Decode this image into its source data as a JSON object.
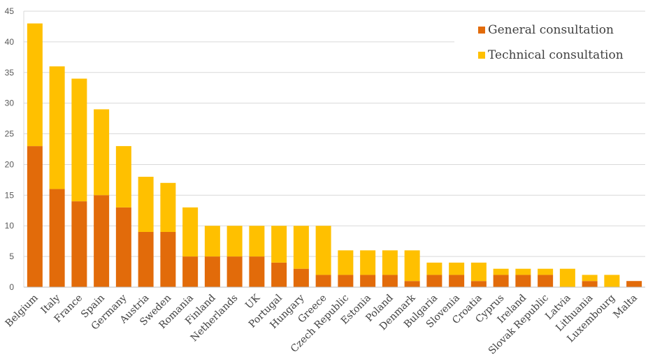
{
  "chart_data": {
    "type": "bar",
    "stacked": true,
    "categories": [
      "Belgium",
      "Italy",
      "France",
      "Spain",
      "Germany",
      "Austria",
      "Sweden",
      "Romania",
      "Finland",
      "Netherlands",
      "UK",
      "Portugal",
      "Hungary",
      "Greece",
      "Czech Republic",
      "Estonia",
      "Poland",
      "Denmark",
      "Bulgaria",
      "Slovenia",
      "Croatia",
      "Cyprus",
      "Ireland",
      "Slovak Republic",
      "Latvia",
      "Lithuania",
      "Luxembourg",
      "Malta"
    ],
    "series": [
      {
        "name": "General consultation",
        "color": "#E26B0A",
        "values": [
          23,
          16,
          14,
          15,
          13,
          9,
          9,
          5,
          5,
          5,
          5,
          4,
          3,
          2,
          2,
          2,
          2,
          1,
          2,
          2,
          1,
          2,
          2,
          2,
          0,
          1,
          0,
          1
        ]
      },
      {
        "name": "Technical consultation",
        "color": "#FFC000",
        "values": [
          20,
          20,
          20,
          14,
          10,
          9,
          8,
          8,
          5,
          5,
          5,
          6,
          7,
          8,
          4,
          4,
          4,
          5,
          2,
          2,
          3,
          1,
          1,
          1,
          3,
          1,
          2,
          0
        ]
      }
    ],
    "ylim": [
      0,
      45
    ],
    "yticks": [
      "0",
      "5",
      "10",
      "15",
      "20",
      "25",
      "30",
      "35",
      "40",
      "45"
    ],
    "grid": true,
    "legend_position": "top-right",
    "title": "",
    "xlabel": "",
    "ylabel": ""
  }
}
